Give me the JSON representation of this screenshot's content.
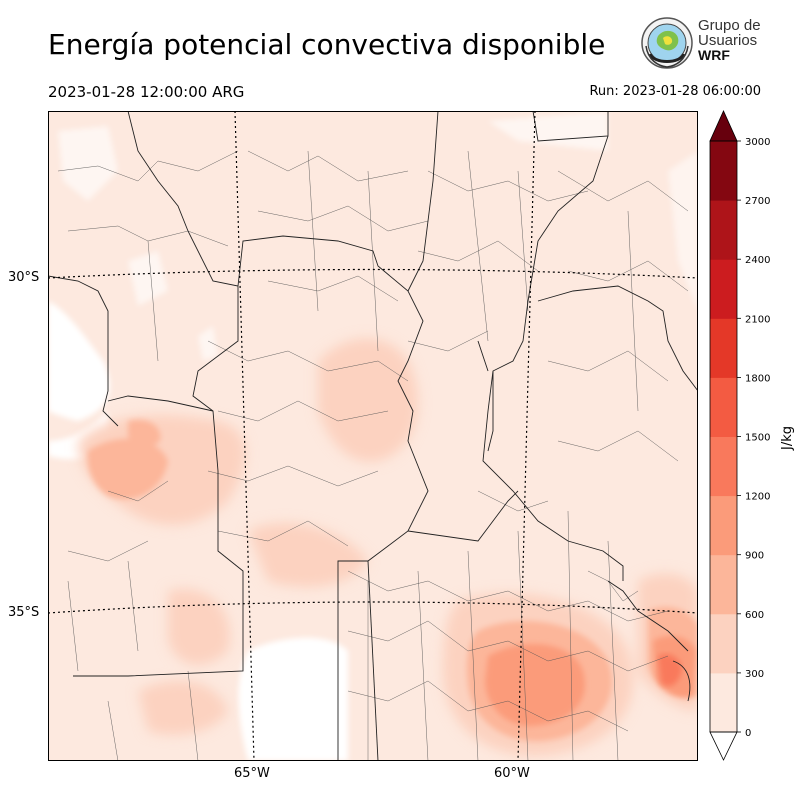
{
  "header": {
    "title": "Energía potencial convectiva disponible",
    "valid_time": "2023-01-28 12:00:00 ARG",
    "run_time": "Run: 2023-01-28 06:00:00"
  },
  "logo": {
    "line1": "Grupo de",
    "line2": "Usuarios",
    "line3": "WRF"
  },
  "map": {
    "lat_labels": [
      "30°S",
      "35°S"
    ],
    "lon_labels": [
      "65°W",
      "60°W"
    ]
  },
  "colorbar": {
    "label": "J/kg",
    "ticks": [
      "0",
      "300",
      "600",
      "900",
      "1200",
      "1500",
      "1800",
      "2100",
      "2400",
      "2700",
      "3000"
    ],
    "colors": [
      "#fde9df",
      "#fcd2c0",
      "#fcb69a",
      "#fb9b7a",
      "#f9795c",
      "#f35b42",
      "#e43828",
      "#cc1c1f",
      "#ae1419",
      "#840711"
    ],
    "under_color": "#ffffff",
    "over_color": "#67000d"
  }
}
